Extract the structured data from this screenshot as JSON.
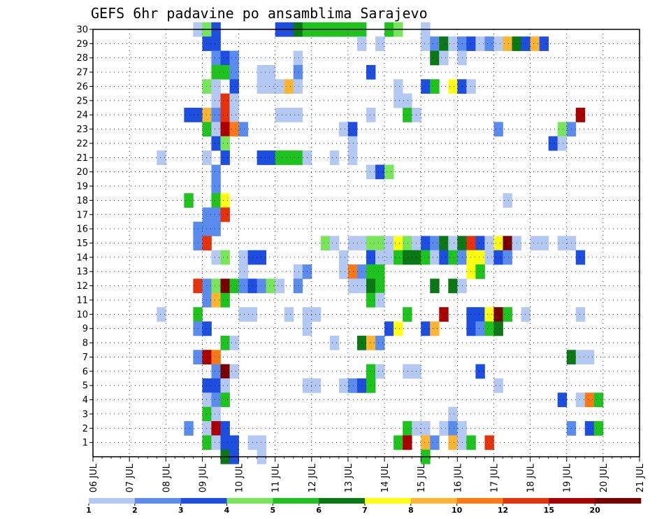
{
  "chart_data": {
    "type": "heatmap",
    "title": "GEFS 6hr padavine po ansamblima Sarajevo",
    "xlabel": "",
    "ylabel": "",
    "x_tick_labels": [
      "06 JUL",
      "07 JUL",
      "08 JUL",
      "09 JUL",
      "10 JUL",
      "11 JUL",
      "12 JUL",
      "13 JUL",
      "14 JUL",
      "15 JUL",
      "16 JUL",
      "17 JUL",
      "18 JUL",
      "19 JUL",
      "20 JUL",
      "21 JUL"
    ],
    "y_ticks": [
      1,
      2,
      3,
      4,
      5,
      6,
      7,
      8,
      9,
      10,
      11,
      12,
      13,
      14,
      15,
      16,
      17,
      18,
      19,
      20,
      21,
      22,
      23,
      24,
      25,
      26,
      27,
      28,
      29,
      30
    ],
    "x_range": [
      0,
      60
    ],
    "y_range": [
      0,
      30
    ],
    "grid": true,
    "colorbar": {
      "labels": [
        "1",
        "2",
        "3",
        "4",
        "5",
        "6",
        "7",
        "8",
        "10",
        "12",
        "15",
        "20"
      ],
      "colors": [
        "#b4c8f4",
        "#5a8cf0",
        "#1e4ee0",
        "#78e65a",
        "#1ec31e",
        "#0a7814",
        "#ffff14",
        "#ffb432",
        "#ff7814",
        "#e6320a",
        "#aa0000",
        "#780000"
      ]
    },
    "cells_note_levels": "value is index into colorbar.colors (0=1mm .. 11=20mm)",
    "cells": [
      [
        11,
        30,
        0
      ],
      [
        12,
        30,
        3
      ],
      [
        13,
        30,
        2
      ],
      [
        20,
        30,
        2
      ],
      [
        21,
        30,
        2
      ],
      [
        22,
        30,
        5
      ],
      [
        23,
        30,
        4
      ],
      [
        24,
        30,
        4
      ],
      [
        25,
        30,
        4
      ],
      [
        26,
        30,
        4
      ],
      [
        27,
        30,
        4
      ],
      [
        28,
        30,
        4
      ],
      [
        29,
        30,
        4
      ],
      [
        32,
        30,
        4
      ],
      [
        33,
        30,
        3
      ],
      [
        36,
        30,
        0
      ],
      [
        12,
        29,
        2
      ],
      [
        13,
        29,
        2
      ],
      [
        29,
        29,
        0
      ],
      [
        31,
        29,
        0
      ],
      [
        36,
        29,
        0
      ],
      [
        37,
        29,
        1
      ],
      [
        38,
        29,
        5
      ],
      [
        39,
        29,
        0
      ],
      [
        40,
        29,
        1
      ],
      [
        41,
        29,
        2
      ],
      [
        42,
        29,
        0
      ],
      [
        43,
        29,
        1
      ],
      [
        44,
        29,
        0
      ],
      [
        45,
        29,
        7
      ],
      [
        46,
        29,
        5
      ],
      [
        47,
        29,
        2
      ],
      [
        48,
        29,
        7
      ],
      [
        49,
        29,
        2
      ],
      [
        13,
        28,
        1
      ],
      [
        14,
        28,
        2
      ],
      [
        15,
        28,
        1
      ],
      [
        22,
        28,
        0
      ],
      [
        37,
        28,
        5
      ],
      [
        38,
        28,
        0
      ],
      [
        40,
        28,
        0
      ],
      [
        13,
        27,
        4
      ],
      [
        14,
        27,
        4
      ],
      [
        15,
        27,
        1
      ],
      [
        18,
        27,
        0
      ],
      [
        19,
        27,
        0
      ],
      [
        22,
        27,
        1
      ],
      [
        30,
        27,
        2
      ],
      [
        12,
        26,
        3
      ],
      [
        13,
        26,
        0
      ],
      [
        15,
        26,
        2
      ],
      [
        18,
        26,
        0
      ],
      [
        19,
        26,
        0
      ],
      [
        20,
        26,
        0
      ],
      [
        21,
        26,
        7
      ],
      [
        22,
        26,
        0
      ],
      [
        33,
        26,
        0
      ],
      [
        36,
        26,
        2
      ],
      [
        37,
        26,
        4
      ],
      [
        39,
        26,
        6
      ],
      [
        40,
        26,
        2
      ],
      [
        41,
        26,
        0
      ],
      [
        13,
        25,
        0
      ],
      [
        14,
        25,
        9
      ],
      [
        15,
        25,
        0
      ],
      [
        33,
        25,
        0
      ],
      [
        34,
        25,
        0
      ],
      [
        10,
        24,
        2
      ],
      [
        11,
        24,
        2
      ],
      [
        12,
        24,
        7
      ],
      [
        13,
        24,
        1
      ],
      [
        14,
        24,
        9
      ],
      [
        15,
        24,
        0
      ],
      [
        20,
        24,
        0
      ],
      [
        21,
        24,
        0
      ],
      [
        22,
        24,
        0
      ],
      [
        30,
        24,
        0
      ],
      [
        34,
        24,
        4
      ],
      [
        35,
        24,
        0
      ],
      [
        53,
        24,
        10
      ],
      [
        12,
        23,
        4
      ],
      [
        13,
        23,
        0
      ],
      [
        14,
        23,
        10
      ],
      [
        15,
        23,
        8
      ],
      [
        16,
        23,
        1
      ],
      [
        27,
        23,
        0
      ],
      [
        28,
        23,
        2
      ],
      [
        44,
        23,
        1
      ],
      [
        51,
        23,
        3
      ],
      [
        52,
        23,
        1
      ],
      [
        13,
        22,
        2
      ],
      [
        14,
        22,
        3
      ],
      [
        28,
        22,
        0
      ],
      [
        50,
        22,
        2
      ],
      [
        51,
        22,
        0
      ],
      [
        7,
        21,
        0
      ],
      [
        12,
        21,
        0
      ],
      [
        14,
        21,
        2
      ],
      [
        18,
        21,
        2
      ],
      [
        19,
        21,
        2
      ],
      [
        20,
        21,
        4
      ],
      [
        21,
        21,
        4
      ],
      [
        22,
        21,
        4
      ],
      [
        23,
        21,
        0
      ],
      [
        26,
        21,
        0
      ],
      [
        28,
        21,
        0
      ],
      [
        13,
        20,
        1
      ],
      [
        30,
        20,
        0
      ],
      [
        31,
        20,
        2
      ],
      [
        32,
        20,
        3
      ],
      [
        13,
        19,
        1
      ],
      [
        10,
        18,
        4
      ],
      [
        13,
        18,
        4
      ],
      [
        14,
        18,
        6
      ],
      [
        45,
        18,
        0
      ],
      [
        12,
        17,
        1
      ],
      [
        13,
        17,
        1
      ],
      [
        14,
        17,
        9
      ],
      [
        11,
        16,
        1
      ],
      [
        12,
        16,
        1
      ],
      [
        13,
        16,
        1
      ],
      [
        11,
        15,
        1
      ],
      [
        12,
        15,
        9
      ],
      [
        25,
        15,
        3
      ],
      [
        26,
        15,
        0
      ],
      [
        28,
        15,
        0
      ],
      [
        29,
        15,
        0
      ],
      [
        30,
        15,
        3
      ],
      [
        31,
        15,
        3
      ],
      [
        32,
        15,
        0
      ],
      [
        33,
        15,
        6
      ],
      [
        34,
        15,
        3
      ],
      [
        35,
        15,
        0
      ],
      [
        36,
        15,
        2
      ],
      [
        37,
        15,
        1
      ],
      [
        38,
        15,
        5
      ],
      [
        39,
        15,
        0
      ],
      [
        40,
        15,
        5
      ],
      [
        41,
        15,
        9
      ],
      [
        42,
        15,
        2
      ],
      [
        43,
        15,
        0
      ],
      [
        44,
        15,
        6
      ],
      [
        45,
        15,
        11
      ],
      [
        46,
        15,
        0
      ],
      [
        48,
        15,
        0
      ],
      [
        49,
        15,
        0
      ],
      [
        51,
        15,
        0
      ],
      [
        52,
        15,
        0
      ],
      [
        13,
        14,
        0
      ],
      [
        14,
        14,
        3
      ],
      [
        16,
        14,
        0
      ],
      [
        17,
        14,
        2
      ],
      [
        18,
        14,
        2
      ],
      [
        27,
        14,
        0
      ],
      [
        30,
        14,
        2
      ],
      [
        31,
        14,
        0
      ],
      [
        32,
        14,
        0
      ],
      [
        33,
        14,
        4
      ],
      [
        34,
        14,
        5
      ],
      [
        35,
        14,
        5
      ],
      [
        36,
        14,
        4
      ],
      [
        37,
        14,
        0
      ],
      [
        38,
        14,
        2
      ],
      [
        39,
        14,
        4
      ],
      [
        40,
        14,
        1
      ],
      [
        41,
        14,
        6
      ],
      [
        42,
        14,
        6
      ],
      [
        43,
        14,
        0
      ],
      [
        44,
        14,
        2
      ],
      [
        45,
        14,
        1
      ],
      [
        53,
        14,
        2
      ],
      [
        16,
        13,
        0
      ],
      [
        22,
        13,
        0
      ],
      [
        23,
        13,
        1
      ],
      [
        27,
        13,
        0
      ],
      [
        28,
        13,
        8
      ],
      [
        29,
        13,
        1
      ],
      [
        30,
        13,
        4
      ],
      [
        31,
        13,
        4
      ],
      [
        41,
        13,
        6
      ],
      [
        42,
        13,
        4
      ],
      [
        11,
        12,
        9
      ],
      [
        12,
        12,
        1
      ],
      [
        13,
        12,
        3
      ],
      [
        14,
        12,
        11
      ],
      [
        15,
        12,
        4
      ],
      [
        16,
        12,
        1
      ],
      [
        17,
        12,
        2
      ],
      [
        18,
        12,
        1
      ],
      [
        19,
        12,
        3
      ],
      [
        20,
        12,
        0
      ],
      [
        22,
        12,
        1
      ],
      [
        28,
        12,
        0
      ],
      [
        29,
        12,
        0
      ],
      [
        30,
        12,
        5
      ],
      [
        31,
        12,
        4
      ],
      [
        37,
        12,
        5
      ],
      [
        39,
        12,
        5
      ],
      [
        40,
        12,
        0
      ],
      [
        12,
        11,
        1
      ],
      [
        13,
        11,
        7
      ],
      [
        14,
        11,
        4
      ],
      [
        30,
        11,
        4
      ],
      [
        31,
        11,
        0
      ],
      [
        7,
        10,
        0
      ],
      [
        11,
        10,
        4
      ],
      [
        16,
        10,
        0
      ],
      [
        17,
        10,
        0
      ],
      [
        21,
        10,
        0
      ],
      [
        23,
        10,
        0
      ],
      [
        24,
        10,
        0
      ],
      [
        34,
        10,
        4
      ],
      [
        38,
        10,
        10
      ],
      [
        41,
        10,
        2
      ],
      [
        42,
        10,
        2
      ],
      [
        43,
        10,
        6
      ],
      [
        44,
        10,
        11
      ],
      [
        45,
        10,
        4
      ],
      [
        47,
        10,
        0
      ],
      [
        53,
        10,
        0
      ],
      [
        11,
        9,
        1
      ],
      [
        12,
        9,
        2
      ],
      [
        23,
        9,
        0
      ],
      [
        32,
        9,
        2
      ],
      [
        33,
        9,
        6
      ],
      [
        36,
        9,
        2
      ],
      [
        37,
        9,
        7
      ],
      [
        41,
        9,
        2
      ],
      [
        42,
        9,
        1
      ],
      [
        43,
        9,
        4
      ],
      [
        44,
        9,
        5
      ],
      [
        14,
        8,
        4
      ],
      [
        15,
        8,
        0
      ],
      [
        26,
        8,
        0
      ],
      [
        29,
        8,
        5
      ],
      [
        30,
        8,
        7
      ],
      [
        31,
        8,
        1
      ],
      [
        11,
        7,
        1
      ],
      [
        12,
        7,
        10
      ],
      [
        13,
        7,
        8
      ],
      [
        52,
        7,
        5
      ],
      [
        53,
        7,
        0
      ],
      [
        54,
        7,
        0
      ],
      [
        13,
        6,
        1
      ],
      [
        14,
        6,
        11
      ],
      [
        15,
        6,
        0
      ],
      [
        30,
        6,
        4
      ],
      [
        31,
        6,
        0
      ],
      [
        34,
        6,
        0
      ],
      [
        35,
        6,
        0
      ],
      [
        42,
        6,
        2
      ],
      [
        12,
        5,
        2
      ],
      [
        13,
        5,
        2
      ],
      [
        14,
        5,
        0
      ],
      [
        23,
        5,
        0
      ],
      [
        24,
        5,
        0
      ],
      [
        27,
        5,
        0
      ],
      [
        28,
        5,
        1
      ],
      [
        29,
        5,
        2
      ],
      [
        30,
        5,
        4
      ],
      [
        44,
        5,
        0
      ],
      [
        12,
        4,
        0
      ],
      [
        13,
        4,
        1
      ],
      [
        14,
        4,
        4
      ],
      [
        51,
        4,
        2
      ],
      [
        53,
        4,
        0
      ],
      [
        54,
        4,
        8
      ],
      [
        55,
        4,
        4
      ],
      [
        12,
        3,
        4
      ],
      [
        13,
        3,
        0
      ],
      [
        39,
        3,
        0
      ],
      [
        10,
        2,
        1
      ],
      [
        12,
        2,
        0
      ],
      [
        13,
        2,
        10
      ],
      [
        14,
        2,
        2
      ],
      [
        34,
        2,
        4
      ],
      [
        35,
        2,
        0
      ],
      [
        36,
        2,
        0
      ],
      [
        38,
        2,
        0
      ],
      [
        39,
        2,
        1
      ],
      [
        40,
        2,
        0
      ],
      [
        52,
        2,
        1
      ],
      [
        54,
        2,
        2
      ],
      [
        55,
        2,
        4
      ],
      [
        12,
        1,
        4
      ],
      [
        13,
        1,
        0
      ],
      [
        14,
        1,
        2
      ],
      [
        15,
        1,
        2
      ],
      [
        17,
        1,
        0
      ],
      [
        18,
        1,
        0
      ],
      [
        33,
        1,
        4
      ],
      [
        34,
        1,
        10
      ],
      [
        36,
        1,
        7
      ],
      [
        37,
        1,
        1
      ],
      [
        39,
        1,
        7
      ],
      [
        40,
        1,
        0
      ],
      [
        41,
        1,
        4
      ],
      [
        43,
        1,
        9
      ],
      [
        14,
        0,
        5
      ],
      [
        15,
        0,
        2
      ],
      [
        18,
        0,
        0
      ],
      [
        36,
        0,
        4
      ]
    ]
  }
}
